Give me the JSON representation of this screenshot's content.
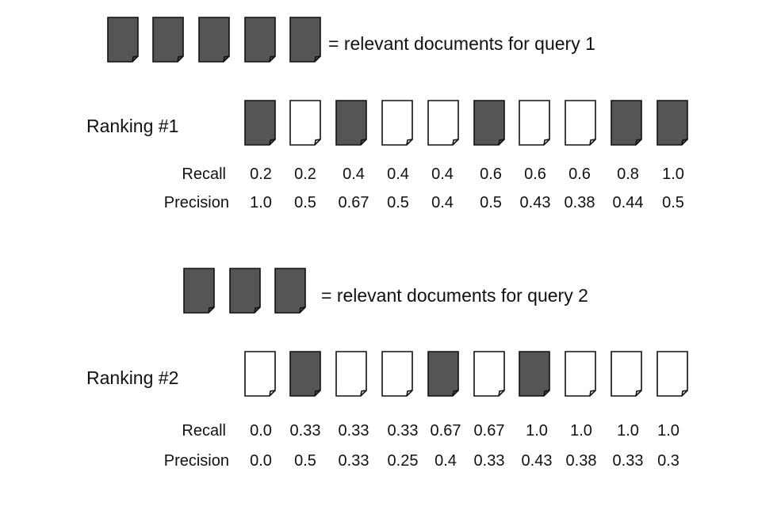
{
  "legend_1": {
    "count": 5,
    "label": "= relevant documents for query 1"
  },
  "ranking_1": {
    "label": "Ranking #1",
    "relevance": [
      1,
      0,
      1,
      0,
      0,
      1,
      0,
      0,
      1,
      1
    ],
    "recall_label": "Recall",
    "precision_label": "Precision",
    "recall": [
      "0.2",
      "0.2",
      "0.4",
      "0.4",
      "0.4",
      "0.6",
      "0.6",
      "0.6",
      "0.8",
      "1.0"
    ],
    "precision": [
      "1.0",
      "0.5",
      "0.67",
      "0.5",
      "0.4",
      "0.5",
      "0.43",
      "0.38",
      "0.44",
      "0.5"
    ]
  },
  "legend_2": {
    "count": 3,
    "label": "= relevant documents for query 2"
  },
  "ranking_2": {
    "label": "Ranking #2",
    "relevance": [
      0,
      1,
      0,
      0,
      1,
      0,
      1,
      0,
      0,
      0
    ],
    "recall_label": "Recall",
    "precision_label": "Precision",
    "recall": [
      "0.0",
      "0.33",
      "0.33",
      "0.33",
      "0.67",
      "0.67",
      "1.0",
      "1.0",
      "1.0",
      "1.0"
    ],
    "precision": [
      "0.0",
      "0.5",
      "0.33",
      "0.25",
      "0.4",
      "0.33",
      "0.43",
      "0.38",
      "0.33",
      "0.3"
    ]
  },
  "colors": {
    "relevant_fill": "#555555",
    "nonrelevant_fill": "#ffffff",
    "outline": "#111111"
  }
}
